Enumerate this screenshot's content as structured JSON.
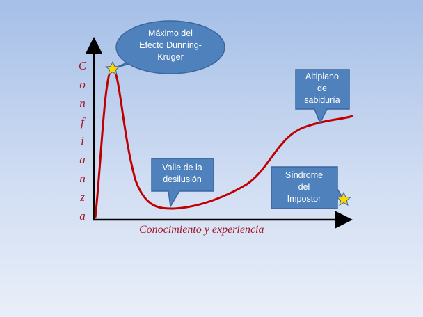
{
  "y_axis_label": "Confianza",
  "x_axis_label": "Conocimiento y experiencia",
  "callouts": [
    {
      "lines": [
        "Máximo del",
        "Efecto Dunning-",
        "Kruger"
      ]
    },
    {
      "lines": [
        "Valle de la",
        "desilusión"
      ]
    },
    {
      "lines": [
        "Altiplano",
        "de",
        "sabiduría"
      ]
    },
    {
      "lines": [
        "Síndrome",
        "del",
        "Impostor"
      ]
    }
  ]
}
